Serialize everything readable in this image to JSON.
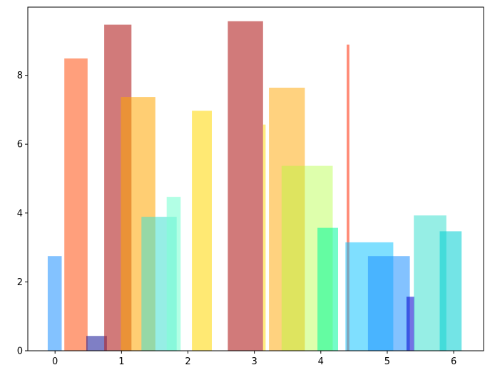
{
  "chart_data": {
    "type": "bar",
    "title": "",
    "xlabel": "",
    "ylabel": "",
    "xlim": [
      -0.41,
      6.45
    ],
    "ylim": [
      0,
      9.98
    ],
    "grid": false,
    "legend": "none",
    "xticks": [
      0,
      1,
      2,
      3,
      4,
      5,
      6
    ],
    "xtick_labels": [
      "0",
      "1",
      "2",
      "3",
      "4",
      "5",
      "6"
    ],
    "yticks": [
      0,
      2,
      4,
      6,
      8
    ],
    "ytick_labels": [
      "0",
      "2",
      "4",
      "6",
      "8"
    ],
    "bars": [
      {
        "x_start": -0.11,
        "x_end": 0.1,
        "value": 2.75,
        "color": "#1E90FF",
        "opacity": 0.55
      },
      {
        "x_start": 0.14,
        "x_end": 0.49,
        "value": 8.49,
        "color": "#FF7F50",
        "opacity": 0.75
      },
      {
        "x_start": 0.47,
        "x_end": 0.78,
        "value": 0.43,
        "color": "#00008B",
        "opacity": 0.5
      },
      {
        "x_start": 0.74,
        "x_end": 1.15,
        "value": 9.47,
        "color": "#B22222",
        "opacity": 0.6
      },
      {
        "x_start": 0.99,
        "x_end": 1.51,
        "value": 7.37,
        "color": "#FFA500",
        "opacity": 0.55
      },
      {
        "x_start": 1.3,
        "x_end": 1.83,
        "value": 3.89,
        "color": "#40E0D0",
        "opacity": 0.55
      },
      {
        "x_start": 1.68,
        "x_end": 1.89,
        "value": 4.47,
        "color": "#7FFFD4",
        "opacity": 0.6
      },
      {
        "x_start": 2.06,
        "x_end": 2.36,
        "value": 6.97,
        "color": "#FFD700",
        "opacity": 0.55
      },
      {
        "x_start": 2.6,
        "x_end": 3.13,
        "value": 9.57,
        "color": "#B22222",
        "opacity": 0.6
      },
      {
        "x_start": 3.13,
        "x_end": 3.17,
        "value": 6.57,
        "color": "#FFD700",
        "opacity": 0.5
      },
      {
        "x_start": 3.22,
        "x_end": 3.76,
        "value": 7.64,
        "color": "#FFA500",
        "opacity": 0.5
      },
      {
        "x_start": 3.41,
        "x_end": 4.18,
        "value": 5.37,
        "color": "#ADFF2F",
        "opacity": 0.4
      },
      {
        "x_start": 3.95,
        "x_end": 4.26,
        "value": 3.57,
        "color": "#00FA9A",
        "opacity": 0.55
      },
      {
        "x_start": 4.39,
        "x_end": 4.43,
        "value": 8.89,
        "color": "#FF6347",
        "opacity": 0.75
      },
      {
        "x_start": 4.37,
        "x_end": 5.09,
        "value": 3.15,
        "color": "#00BFFF",
        "opacity": 0.5
      },
      {
        "x_start": 4.71,
        "x_end": 5.34,
        "value": 2.75,
        "color": "#1E90FF",
        "opacity": 0.55
      },
      {
        "x_start": 5.29,
        "x_end": 5.41,
        "value": 1.57,
        "color": "#0000CD",
        "opacity": 0.55
      },
      {
        "x_start": 5.4,
        "x_end": 5.89,
        "value": 3.93,
        "color": "#40E0D0",
        "opacity": 0.55
      },
      {
        "x_start": 5.79,
        "x_end": 6.12,
        "value": 3.47,
        "color": "#00CED1",
        "opacity": 0.55
      }
    ]
  }
}
